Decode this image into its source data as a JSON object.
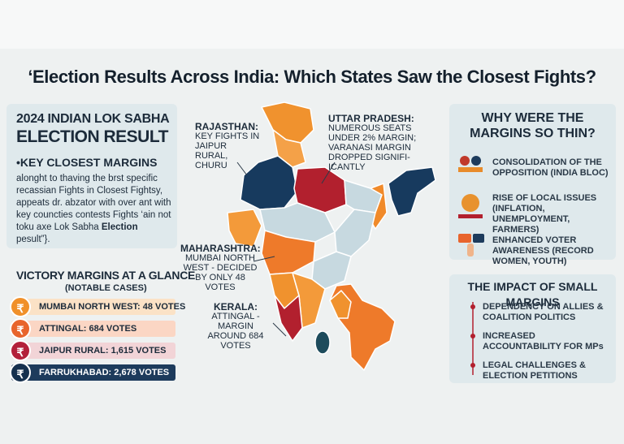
{
  "title": "‘Election Results Across India: Which States Saw the Closest Fights?",
  "left_panel": {
    "heading_line1": "2024 INDIAN LOK SABHA",
    "heading_line2": "ELECTION RESULT",
    "subheading": "•KEY CLOSEST MARGINS",
    "body_parts": [
      "alonght to thaving the brst specific recassian Fights in Closest Fightsy, appeats dr. abzator with over ant with key councties contests Fights ‘ain not toku axe Lok Sabha ",
      "Election",
      " pesult”}."
    ]
  },
  "victory_margins": {
    "title": "VICTORY MARGINS AT A GLANCE",
    "subtitle": "(NOTABLE CASES)",
    "icon": "₹",
    "rows": [
      "MUMBAI NORTH WEST: 48 VOTES",
      "ATTINGAL: 684 VOTES",
      "JAIPUR RURAL: 1,615 VOTES",
      "FARRUKHABAD: 2,678 VOTES"
    ]
  },
  "map_annotations": [
    {
      "state": "RAJASTHAN:",
      "text": "KEY FIGHTS IN JAIPUR RURAL, CHURU"
    },
    {
      "state": "UTTAR PRADESH:",
      "text": "NUMEROUS SEATS UNDER 2% MARGIN; VARANASI MARGIN DROPPED SIGNIFI-ICANTLY"
    },
    {
      "state": "MAHARASHTRA:",
      "text": "MUMBAI NORTH WEST - DECIDED BY ONLY 48 VOTES"
    },
    {
      "state": "KERALA:",
      "text": "ATTINGAL - MARGIN AROUND 684 VOTES"
    }
  ],
  "why_panel": {
    "title": "WHY WERE THE MARGINS SO THIN?",
    "items": [
      "CONSOLIDATION OF THE OPPOSITION (INDIA BLOC)",
      "RISE OF LOCAL ISSUES (INFLATION, UNEMPLOYMENT, FARMERS)",
      "ENHANCED VOTER AWARENESS (RECORD WOMEN, YOUTH)"
    ]
  },
  "impact_panel": {
    "title": "THE IMPACT OF SMALL MARGINS",
    "items": [
      "DEPENDENCY ON ALLIES & COALITION POLITICS",
      "INCREASED ACCOUNTABILITY FOR MPs",
      "LEGAL CHALLENGES & ELECTION PETITIONS"
    ]
  }
}
